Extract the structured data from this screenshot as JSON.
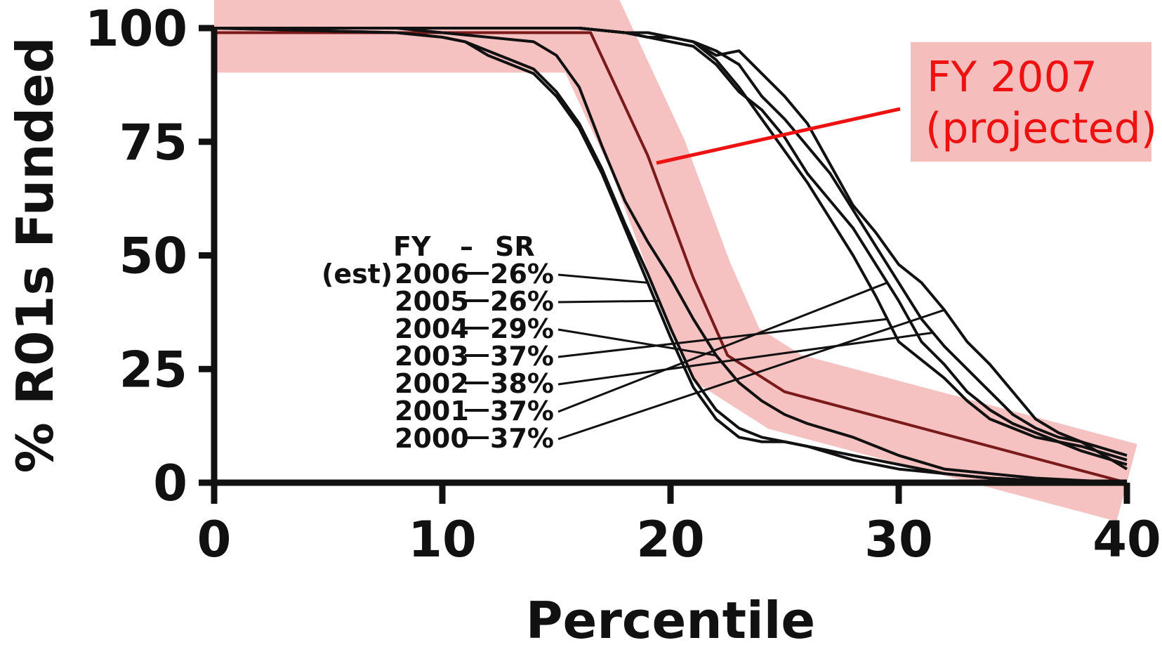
{
  "chart_data": {
    "type": "line",
    "xlabel": "Percentile",
    "ylabel": "% R01s Funded",
    "xlim": [
      0,
      40
    ],
    "ylim": [
      0,
      100
    ],
    "xticks": [
      "0",
      "10",
      "20",
      "30",
      "40"
    ],
    "yticks": [
      "0",
      "25",
      "50",
      "75",
      "100"
    ],
    "grid": false,
    "legend_header": {
      "fy": "FY",
      "sep": "–",
      "sr": "SR"
    },
    "legend_position": "center-left",
    "series": [
      {
        "name": "2006",
        "prefix": "(est)",
        "sr": "26%",
        "color": "#111111",
        "x": [
          0,
          8,
          10,
          11,
          12,
          13,
          14,
          15,
          16,
          17,
          18,
          19,
          20,
          21,
          22,
          23,
          24,
          25,
          26,
          28,
          30,
          32,
          34,
          36,
          40
        ],
        "y": [
          100,
          99,
          98,
          97,
          94,
          92,
          90,
          85,
          78,
          68,
          56,
          44,
          32,
          21,
          14,
          10,
          9,
          9,
          8,
          5,
          3,
          2,
          1,
          0.5,
          0
        ]
      },
      {
        "name": "2005",
        "sr": "26%",
        "color": "#111111",
        "x": [
          0,
          8,
          10,
          11,
          12,
          13,
          14,
          15,
          16,
          17,
          18,
          19,
          20,
          21,
          22,
          23,
          24,
          25,
          26,
          28,
          30,
          32,
          34,
          36,
          40
        ],
        "y": [
          100,
          99,
          98,
          97,
          95,
          93,
          91,
          86,
          79,
          69,
          57,
          46,
          34,
          23,
          16,
          12,
          10,
          9,
          8,
          6,
          4,
          2,
          1,
          0.5,
          0
        ]
      },
      {
        "name": "2004",
        "sr": "29%",
        "color": "#111111",
        "x": [
          0,
          8,
          10,
          12,
          14,
          15,
          16,
          17,
          18,
          19,
          20,
          21,
          22,
          23,
          24,
          25,
          26,
          28,
          30,
          32,
          34,
          36,
          40
        ],
        "y": [
          100,
          100,
          99,
          98,
          97,
          94,
          87,
          74,
          62,
          53,
          45,
          36,
          28,
          22,
          18,
          15,
          13,
          10,
          6,
          3,
          2,
          1,
          0
        ]
      },
      {
        "name": "2003",
        "sr": "37%",
        "color": "#111111",
        "x": [
          0,
          10,
          14,
          16,
          18,
          19,
          20,
          21,
          22,
          23,
          24,
          25,
          26,
          27,
          28,
          29,
          30,
          31,
          32,
          33,
          34,
          35,
          36,
          37,
          38,
          40
        ],
        "y": [
          100,
          100,
          100,
          100,
          99,
          98,
          98,
          97,
          93,
          87,
          80,
          73,
          66,
          58,
          50,
          41,
          31,
          27,
          23,
          18,
          14,
          12,
          10,
          9,
          8,
          5
        ]
      },
      {
        "name": "2002",
        "sr": "38%",
        "color": "#111111",
        "x": [
          0,
          10,
          14,
          16,
          18,
          19,
          20,
          21,
          22,
          23,
          24,
          25,
          26,
          27,
          28,
          29,
          30,
          31,
          32,
          33,
          34,
          35,
          36,
          37,
          38,
          40
        ],
        "y": [
          100,
          100,
          100,
          100,
          99,
          99,
          98,
          97,
          95,
          92,
          85,
          80,
          74,
          68,
          60,
          52,
          44,
          36,
          30,
          25,
          20,
          15,
          12,
          10,
          9,
          6
        ]
      },
      {
        "name": "2001",
        "sr": "37%",
        "color": "#111111",
        "x": [
          0,
          10,
          14,
          16,
          18,
          19,
          20,
          21,
          22,
          23,
          24,
          25,
          26,
          27,
          28,
          29,
          30,
          31,
          32,
          33,
          34,
          35,
          36,
          37,
          38,
          40
        ],
        "y": [
          100,
          100,
          100,
          100,
          99,
          98,
          97,
          96,
          92,
          86,
          82,
          76,
          68,
          62,
          56,
          48,
          40,
          31,
          26,
          20,
          16,
          13,
          11,
          9,
          7,
          4
        ]
      },
      {
        "name": "2000",
        "sr": "37%",
        "color": "#111111",
        "x": [
          0,
          10,
          14,
          16,
          18,
          19,
          20,
          21,
          22,
          23,
          24,
          25,
          26,
          27,
          28,
          29,
          30,
          31,
          32,
          33,
          34,
          35,
          36,
          37,
          38,
          40
        ],
        "y": [
          100,
          100,
          100,
          100,
          99,
          99,
          98,
          97,
          94,
          95,
          90,
          85,
          79,
          70,
          61,
          55,
          48,
          44,
          38,
          31,
          26,
          20,
          14,
          11,
          9,
          3
        ]
      }
    ],
    "highlight": {
      "name": "FY 2007",
      "label_line1": "FY 2007",
      "label_line2": "(projected)",
      "color": "#ee1111",
      "fill_color": "#f5b6b6",
      "x": [
        0,
        15.5,
        16.5,
        19,
        21,
        22.5,
        25,
        40
      ],
      "y": [
        99,
        99,
        99,
        72,
        45,
        28,
        20,
        0
      ],
      "band_width": 3.5,
      "callout_point": [
        19.5,
        70
      ]
    }
  }
}
